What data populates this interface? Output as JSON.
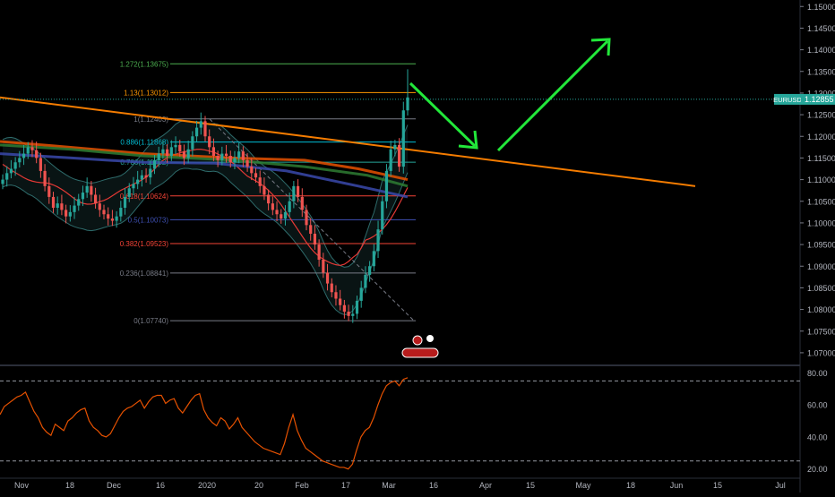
{
  "chart_data": [
    {
      "type": "candlestick",
      "symbol": "EURUSD",
      "last_price_label": "1.12855",
      "last_price": 1.12855,
      "y_ticks": [
        "1.15000",
        "1.14500",
        "1.14000",
        "1.13500",
        "1.13000",
        "1.12500",
        "1.12000",
        "1.11500",
        "1.11000",
        "1.10500",
        "1.10000",
        "1.09500",
        "1.09000",
        "1.08500",
        "1.08000",
        "1.07500",
        "1.07000"
      ],
      "y_tick_values": [
        1.15,
        1.145,
        1.14,
        1.135,
        1.13,
        1.125,
        1.12,
        1.115,
        1.11,
        1.105,
        1.1,
        1.095,
        1.09,
        1.085,
        1.08,
        1.075,
        1.07
      ],
      "ylim": [
        1.0675,
        1.1515
      ],
      "x_ticks": [
        "Nov",
        "18",
        "Dec",
        "16",
        "2020",
        "20",
        "Feb",
        "17",
        "Mar",
        "16",
        "Apr",
        "15",
        "May",
        "18",
        "Jun",
        "15",
        "Jul"
      ],
      "fib_levels": [
        {
          "label": "1.272(1.13675)",
          "value": 1.13675,
          "color": "#4caf50"
        },
        {
          "label": "1.13(1.13012)",
          "value": 1.13012,
          "color": "#ff9800"
        },
        {
          "label": "1(1.12403)",
          "value": 1.12403,
          "color": "#787b86"
        },
        {
          "label": "0.886(1.11868)",
          "value": 1.11868,
          "color": "#00bcd4"
        },
        {
          "label": "0.786(1.11402)",
          "value": 1.11402,
          "color": "#26a69a"
        },
        {
          "label": "0.618(1.10624)",
          "value": 1.10624,
          "color": "#f44336"
        },
        {
          "label": "0.5(1.10073)",
          "value": 1.10073,
          "color": "#3f51b5"
        },
        {
          "label": "0.382(1.09523)",
          "value": 1.09523,
          "color": "#f44336"
        },
        {
          "label": "0.236(1.08841)",
          "value": 1.08841,
          "color": "#787b86"
        },
        {
          "label": "0(1.07740)",
          "value": 1.0774,
          "color": "#787b86"
        }
      ],
      "candles_close": [
        1.11,
        1.1115,
        1.1125,
        1.114,
        1.115,
        1.116,
        1.1175,
        1.1168,
        1.115,
        1.112,
        1.1085,
        1.106,
        1.1035,
        1.1045,
        1.103,
        1.1015,
        1.1025,
        1.104,
        1.1055,
        1.107,
        1.1085,
        1.1065,
        1.1045,
        1.103,
        1.102,
        1.101,
        1.1005,
        1.1015,
        1.1035,
        1.106,
        1.108,
        1.109,
        1.11,
        1.111,
        1.1105,
        1.1125,
        1.1145,
        1.116,
        1.117,
        1.1155,
        1.1175,
        1.118,
        1.1165,
        1.115,
        1.117,
        1.12,
        1.122,
        1.1235,
        1.12,
        1.1175,
        1.1155,
        1.1145,
        1.116,
        1.1155,
        1.114,
        1.115,
        1.1165,
        1.1145,
        1.113,
        1.1115,
        1.1105,
        1.1085,
        1.1065,
        1.1045,
        1.103,
        1.102,
        1.101,
        1.1025,
        1.105,
        1.1085,
        1.106,
        1.103,
        1.0995,
        1.0975,
        1.095,
        1.0915,
        1.0885,
        1.086,
        1.084,
        1.0825,
        1.081,
        1.0795,
        1.0785,
        1.079,
        1.082,
        1.085,
        1.088,
        1.09,
        1.0935,
        1.0985,
        1.105,
        1.112,
        1.117,
        1.118,
        1.113,
        1.126,
        1.129
      ],
      "rsi": {
        "y_ticks": [
          "80.00",
          "60.00",
          "40.00",
          "20.00"
        ],
        "y_tick_values": [
          80,
          60,
          40,
          20
        ],
        "ylim": [
          16.5,
          82.5
        ],
        "bands": [
          75,
          25
        ],
        "values": [
          54,
          59,
          61,
          63,
          65,
          66,
          68,
          62,
          56,
          52,
          46,
          43,
          41,
          48,
          46,
          44,
          50,
          52,
          55,
          57,
          58,
          50,
          46,
          44,
          41,
          40,
          42,
          47,
          52,
          56,
          58,
          59,
          61,
          63,
          58,
          62,
          65,
          66,
          66,
          61,
          63,
          64,
          58,
          55,
          59,
          63,
          66,
          67,
          57,
          52,
          49,
          47,
          52,
          50,
          45,
          48,
          52,
          46,
          43,
          40,
          37,
          35,
          33,
          32,
          31,
          30,
          29,
          36,
          46,
          54,
          44,
          38,
          33,
          31,
          29,
          27,
          25,
          24,
          23,
          22,
          21,
          21,
          20,
          23,
          32,
          40,
          44,
          46,
          52,
          60,
          67,
          72,
          74,
          75,
          72,
          76,
          77
        ]
      }
    }
  ]
}
